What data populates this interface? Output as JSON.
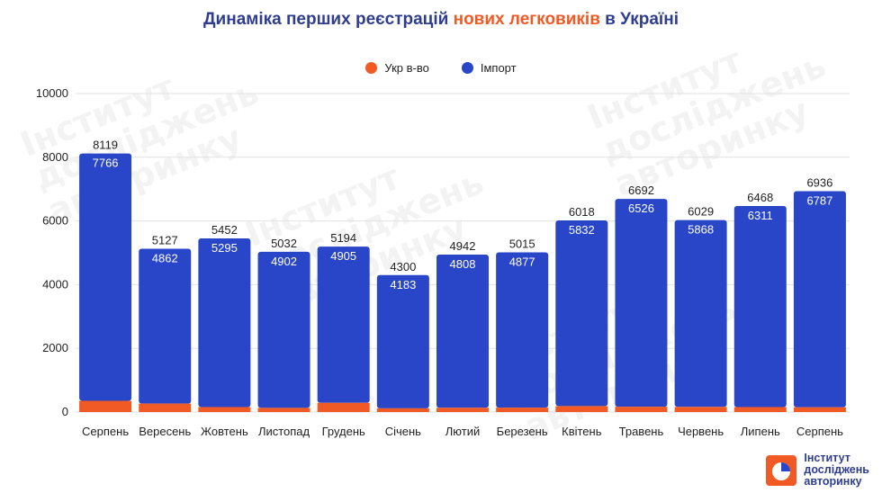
{
  "title": {
    "part1": "Динаміка перших реєстрацій ",
    "highlight": "нових легковиків",
    "part2": " в Україні"
  },
  "colors": {
    "title": "#2f3d8e",
    "highlight": "#f15a24",
    "ukr": "#f15a24",
    "import": "#2846c7",
    "grid": "#e2e2e2"
  },
  "brand": {
    "line1": "Інститут",
    "line2": "досліджень",
    "line3": "авторинку"
  },
  "watermark": "Інститут\nдосліджень\nавторинку",
  "chart_data": {
    "type": "bar",
    "stacked": true,
    "categories": [
      "Серпень",
      "Вересень",
      "Жовтень",
      "Листопад",
      "Грудень",
      "Січень",
      "Лютий",
      "Березень",
      "Квітень",
      "Травень",
      "Червень",
      "Липень",
      "Серпень"
    ],
    "totals": [
      8119,
      5127,
      5452,
      5032,
      5194,
      4300,
      4942,
      5015,
      6018,
      6692,
      6029,
      6468,
      6936
    ],
    "series": [
      {
        "name": "Укр в-во",
        "color": "#f15a24",
        "values": [
          353,
          265,
          157,
          130,
          289,
          117,
          134,
          138,
          186,
          166,
          161,
          157,
          149
        ]
      },
      {
        "name": "Імпорт",
        "color": "#2846c7",
        "values": [
          7766,
          4862,
          5295,
          4902,
          4905,
          4183,
          4808,
          4877,
          5832,
          6526,
          5868,
          6311,
          6787
        ]
      }
    ],
    "yticks": [
      0,
      2000,
      4000,
      6000,
      8000,
      10000
    ],
    "ylim": [
      0,
      10000
    ],
    "grid": true,
    "legend": "top-center"
  }
}
